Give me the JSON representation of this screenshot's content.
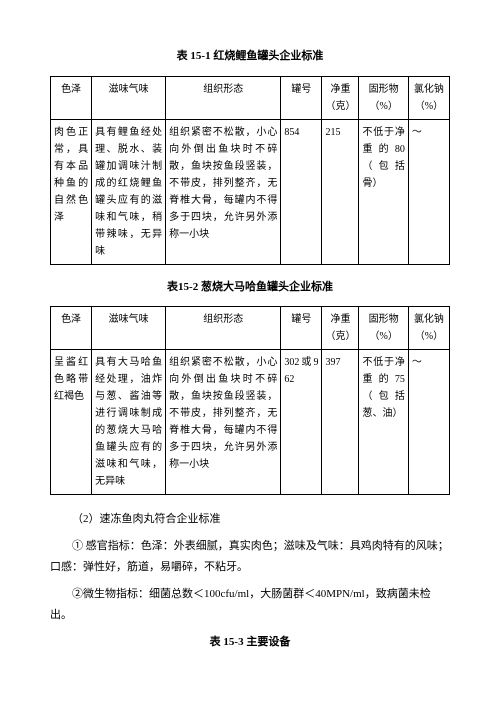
{
  "table1": {
    "title": "表 15-1 红烧鲤鱼罐头企业标准",
    "headers": [
      "色泽",
      "滋味气味",
      "组织形态",
      "罐号",
      "净重（克）",
      "固形物（%）",
      "氯化钠（%）"
    ],
    "row": [
      "肉色正常，具有本品种鱼的自然色泽",
      "具有鲤鱼经处理、脱水、装罐加调味汁制成的红烧鲤鱼罐头应有的滋味和气味，稍带辣味，无异味",
      "组织紧密不松散，小心向外倒出鱼块时不碎散，鱼块按鱼段竖装，不带皮，排列整齐，无脊椎大骨，每罐内不得多于四块，允许另外添称一小块",
      "854",
      "215",
      "不低于净重的80（包括骨）",
      "～"
    ]
  },
  "table2": {
    "title": "表15-2 葱烧大马哈鱼罐头企业标准",
    "headers": [
      "色泽",
      "滋味气味",
      "组织形态",
      "罐号",
      "净重（克）",
      "固形物（%）",
      "氯化钠（%）"
    ],
    "row": [
      "呈酱红色略带红褐色",
      "具有大马哈鱼经处理，油炸与葱、酱油等进行调味制成的葱烧大马哈鱼罐头应有的滋味和气味，无异味",
      "组织紧密不松散，小心向外倒出鱼块时不碎散，鱼块按鱼段竖装，不带皮，排列整齐，无脊椎大骨，每罐内不得多于四块，允许另外添称一小块",
      "302或962",
      "397",
      "不低于净重的75（包括葱、油）",
      "～"
    ]
  },
  "paragraphs": {
    "p1": "（2）速冻鱼肉丸符合企业标准",
    "p2": "① 感官指标：色泽：外表细腻，真实肉色；滋味及气味：具鸡肉特有的风味；口感：弹性好，筋道，易嚼碎，不粘牙。",
    "p3": "②微生物指标：细菌总数＜100cfu/ml，大肠菌群＜40MPN/ml，致病菌未检出。"
  },
  "footer_title": "表 15-3 主要设备"
}
